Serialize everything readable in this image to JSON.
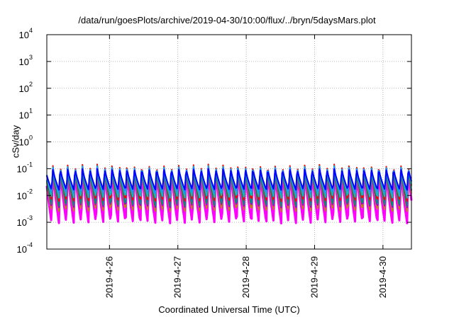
{
  "chart_data": {
    "type": "line",
    "title": "/data/run/goesPlots/archive/2019-04-30/10:00/flux/../bryn/5daysMars.plot",
    "xlabel": "Coordinated Universal Time (UTC)",
    "ylabel": "cSv/day",
    "yscale": "log",
    "ylim": [
      0.0001,
      10000
    ],
    "xlim": [
      "2019-04-25 02:00",
      "2019-04-30 10:00"
    ],
    "grid": true,
    "legend": "none",
    "y_ticks": [
      {
        "base": "10",
        "exp": "-4"
      },
      {
        "base": "10",
        "exp": "-3"
      },
      {
        "base": "10",
        "exp": "-2"
      },
      {
        "base": "10",
        "exp": "-1"
      },
      {
        "base": "10",
        "exp": "0"
      },
      {
        "base": "10",
        "exp": "1"
      },
      {
        "base": "10",
        "exp": "2"
      },
      {
        "base": "10",
        "exp": "3"
      },
      {
        "base": "10",
        "exp": "4"
      }
    ],
    "x_ticks": [
      "2019-4-26",
      "2019-4-27",
      "2019-4-28",
      "2019-4-29",
      "2019-4-30"
    ],
    "pattern": {
      "description_of_data": "periodic sawtooth (~2.6 h period) flux curves between ~0.001 and ~0.15 cSv/day",
      "period_hours": 2.6,
      "series": [
        {
          "color": "#ff00ff",
          "peak": 0.1,
          "trough": 0.0009
        },
        {
          "color": "#b8860b",
          "peak": 0.1,
          "trough": 0.0025
        },
        {
          "color": "#9400d3",
          "peak": 0.11,
          "trough": 0.0035
        },
        {
          "color": "#008b8b",
          "peak": 0.1,
          "trough": 0.004
        },
        {
          "color": "#ff0000",
          "peak": 0.15,
          "trough": 0.006
        },
        {
          "color": "#00bfbf",
          "peak": 0.13,
          "trough": 0.008
        },
        {
          "color": "#1e90ff",
          "peak": 0.12,
          "trough": 0.012
        },
        {
          "color": "#0000ff",
          "peak": 0.1,
          "trough": 0.016
        }
      ]
    }
  }
}
